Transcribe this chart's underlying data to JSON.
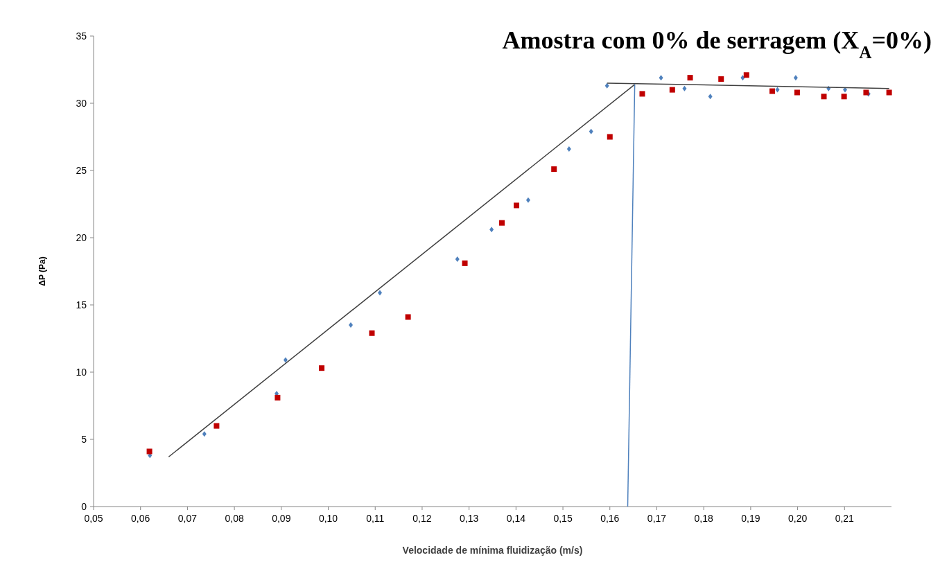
{
  "chart_data": {
    "type": "scatter",
    "title": "Amostra com 0% de serragem (X$_{A}$=0%)",
    "xlabel": "Velocidade de mínima fluidização (m/s)",
    "ylabel": "ΔP (Pa)",
    "xlim": [
      0.05,
      0.22
    ],
    "ylim": [
      0,
      35
    ],
    "xticks": [
      {
        "value": 0.05,
        "label": "0,05"
      },
      {
        "value": 0.06,
        "label": "0,06"
      },
      {
        "value": 0.07,
        "label": "0,07"
      },
      {
        "value": 0.08,
        "label": "0,08"
      },
      {
        "value": 0.09,
        "label": "0,09"
      },
      {
        "value": 0.1,
        "label": "0,10"
      },
      {
        "value": 0.11,
        "label": "0,11"
      },
      {
        "value": 0.12,
        "label": "0,12"
      },
      {
        "value": 0.13,
        "label": "0,13"
      },
      {
        "value": 0.14,
        "label": "0,14"
      },
      {
        "value": 0.15,
        "label": "0,15"
      },
      {
        "value": 0.16,
        "label": "0,16"
      },
      {
        "value": 0.17,
        "label": "0,17"
      },
      {
        "value": 0.18,
        "label": "0,18"
      },
      {
        "value": 0.19,
        "label": "0,19"
      },
      {
        "value": 0.2,
        "label": "0,20"
      },
      {
        "value": 0.21,
        "label": "0,21"
      }
    ],
    "yticks": [
      0,
      5,
      10,
      15,
      20,
      25,
      30,
      35
    ],
    "grid": false,
    "series": [
      {
        "marker": "diamond",
        "color": "#4f81bd",
        "x": [
          0.062,
          0.0736,
          0.089,
          0.0909,
          0.1048,
          0.111,
          0.1275,
          0.1348,
          0.1426,
          0.1513,
          0.156,
          0.1594,
          0.1709,
          0.1759,
          0.1814,
          0.1883,
          0.1957,
          0.1996,
          0.2066,
          0.2101,
          0.2151
        ],
        "values": [
          3.8,
          5.4,
          8.4,
          10.9,
          13.5,
          15.9,
          18.4,
          20.6,
          22.8,
          26.6,
          27.9,
          31.3,
          31.9,
          31.1,
          30.5,
          31.9,
          31.0,
          31.9,
          31.1,
          31.0,
          30.7
        ]
      },
      {
        "marker": "square",
        "color": "#c00000",
        "x": [
          0.0619,
          0.0762,
          0.0892,
          0.0986,
          0.1093,
          0.117,
          0.1291,
          0.137,
          0.1401,
          0.1481,
          0.16,
          0.1669,
          0.1733,
          0.1771,
          0.1837,
          0.1891,
          0.1946,
          0.1999,
          0.2056,
          0.2099,
          0.2146,
          0.2195
        ],
        "values": [
          4.1,
          6.0,
          8.1,
          10.3,
          12.9,
          14.1,
          18.1,
          21.1,
          22.4,
          25.1,
          27.5,
          30.7,
          31.0,
          31.9,
          31.8,
          32.1,
          30.9,
          30.8,
          30.5,
          30.5,
          30.8,
          30.8
        ]
      },
      {
        "type": "line",
        "marker": "none",
        "color": "#404040",
        "x": [
          0.066,
          0.1653
        ],
        "values": [
          3.7,
          31.4
        ]
      },
      {
        "type": "line",
        "marker": "none",
        "color": "#404040",
        "x": [
          0.1594,
          0.2195
        ],
        "values": [
          31.5,
          31.1
        ]
      },
      {
        "type": "line",
        "marker": "none",
        "color": "#4f81bd",
        "x": [
          0.1638,
          0.1653
        ],
        "values": [
          0,
          31.4
        ]
      }
    ]
  }
}
